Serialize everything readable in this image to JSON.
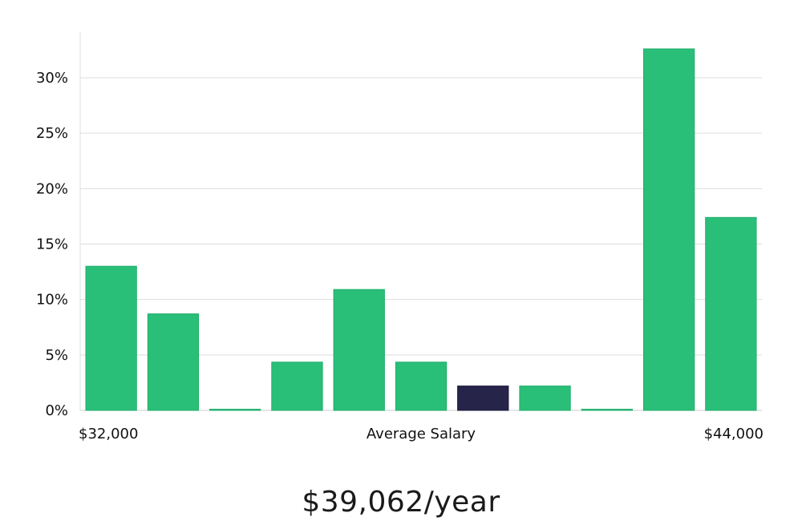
{
  "chart_data": {
    "type": "bar",
    "categories": [
      "1",
      "2",
      "3",
      "4",
      "5",
      "6",
      "7",
      "8",
      "9",
      "10",
      "11"
    ],
    "values": [
      13.0,
      8.7,
      0.1,
      4.35,
      10.9,
      4.35,
      2.2,
      2.2,
      0.1,
      32.6,
      17.4
    ],
    "highlight_index": 6,
    "ylim": [
      0,
      34
    ],
    "yticks": [
      0,
      5,
      10,
      15,
      20,
      25,
      30
    ],
    "ytick_labels": [
      "0%",
      "5%",
      "10%",
      "15%",
      "20%",
      "25%",
      "30%"
    ],
    "xlabel": "Average Salary",
    "x_min_label": "$32,000",
    "x_max_label": "$44,000",
    "grid": true
  },
  "summary": {
    "salary": "$39,062/year"
  },
  "colors": {
    "bar": "#2abf79",
    "bar_border": "#1fae6a",
    "highlight": "#27244a",
    "grid": "#dddddd",
    "axis": "#cccccc"
  }
}
